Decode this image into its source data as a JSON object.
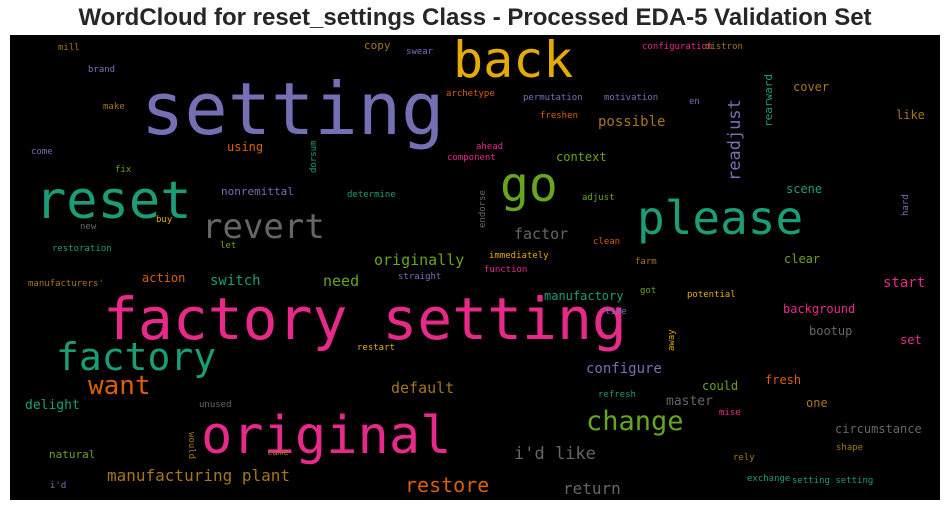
{
  "title": "WordCloud for reset_settings Class - Processed EDA-5 Validation Set",
  "colors": {
    "purple": "#7570b3",
    "green": "#1b9e77",
    "pink": "#e7298a",
    "orange": "#d95f02",
    "gold": "#e6ab02",
    "lime": "#66a61e",
    "gray": "#666666",
    "brown": "#a6761d"
  },
  "words": [
    "setting",
    "factory setting",
    "original",
    "reset",
    "please",
    "back",
    "go",
    "revert",
    "factory",
    "want",
    "change",
    "restore",
    "manufacturing plant",
    "i'd like",
    "readjust",
    "return",
    "default",
    "originally",
    "factor",
    "possible",
    "configure",
    "switch",
    "need",
    "start",
    "clear",
    "background",
    "delight",
    "master",
    "could",
    "fresh",
    "circumstance",
    "bootup",
    "set",
    "context",
    "action",
    "manufactory",
    "scene",
    "nonremittal",
    "using",
    "rearward",
    "cover",
    "like",
    "copy",
    "one",
    "natural",
    "unused",
    "configuration",
    "distron",
    "swear",
    "mill",
    "brand",
    "make",
    "archetype",
    "permutation",
    "motivation",
    "en",
    "freshen",
    "fix",
    "come",
    "dorsum",
    "ahead",
    "component",
    "determine",
    "adjust",
    "endorse",
    "buy",
    "new",
    "let",
    "restoration",
    "clean",
    "immediately",
    "function",
    "farm",
    "got",
    "potential",
    "manufacturers'",
    "straight",
    "time",
    "away",
    "restart",
    "refresh",
    "mise",
    "would",
    "came",
    "rely",
    "shape",
    "exchange",
    "setting setting",
    "i'd",
    "hard"
  ]
}
